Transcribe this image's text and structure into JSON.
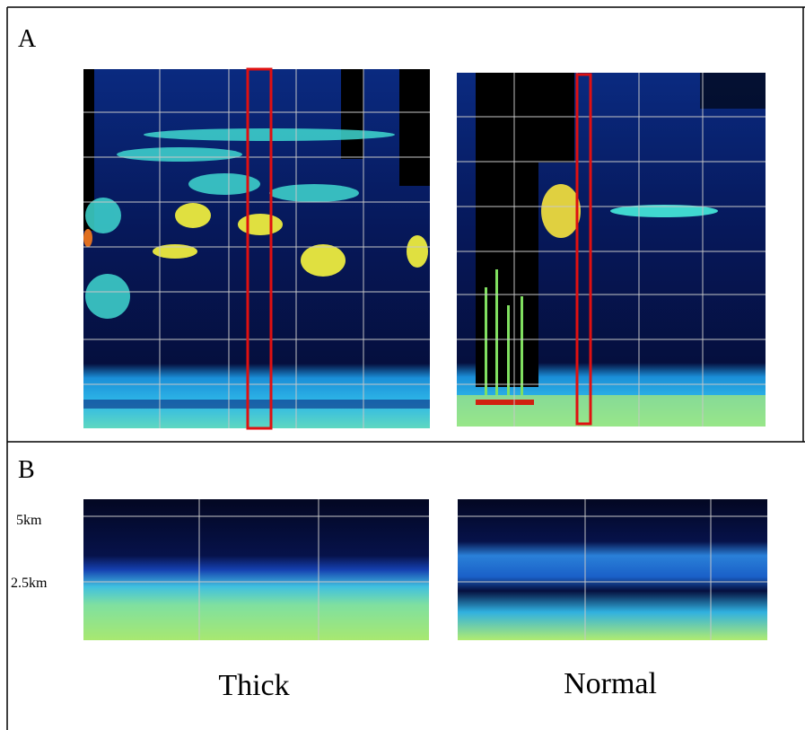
{
  "panel_a": {
    "label": "A"
  },
  "panel_b": {
    "label": "B",
    "axis_labels": [
      "5km",
      "2.5km"
    ],
    "captions": [
      "Thick",
      "Normal"
    ]
  }
}
